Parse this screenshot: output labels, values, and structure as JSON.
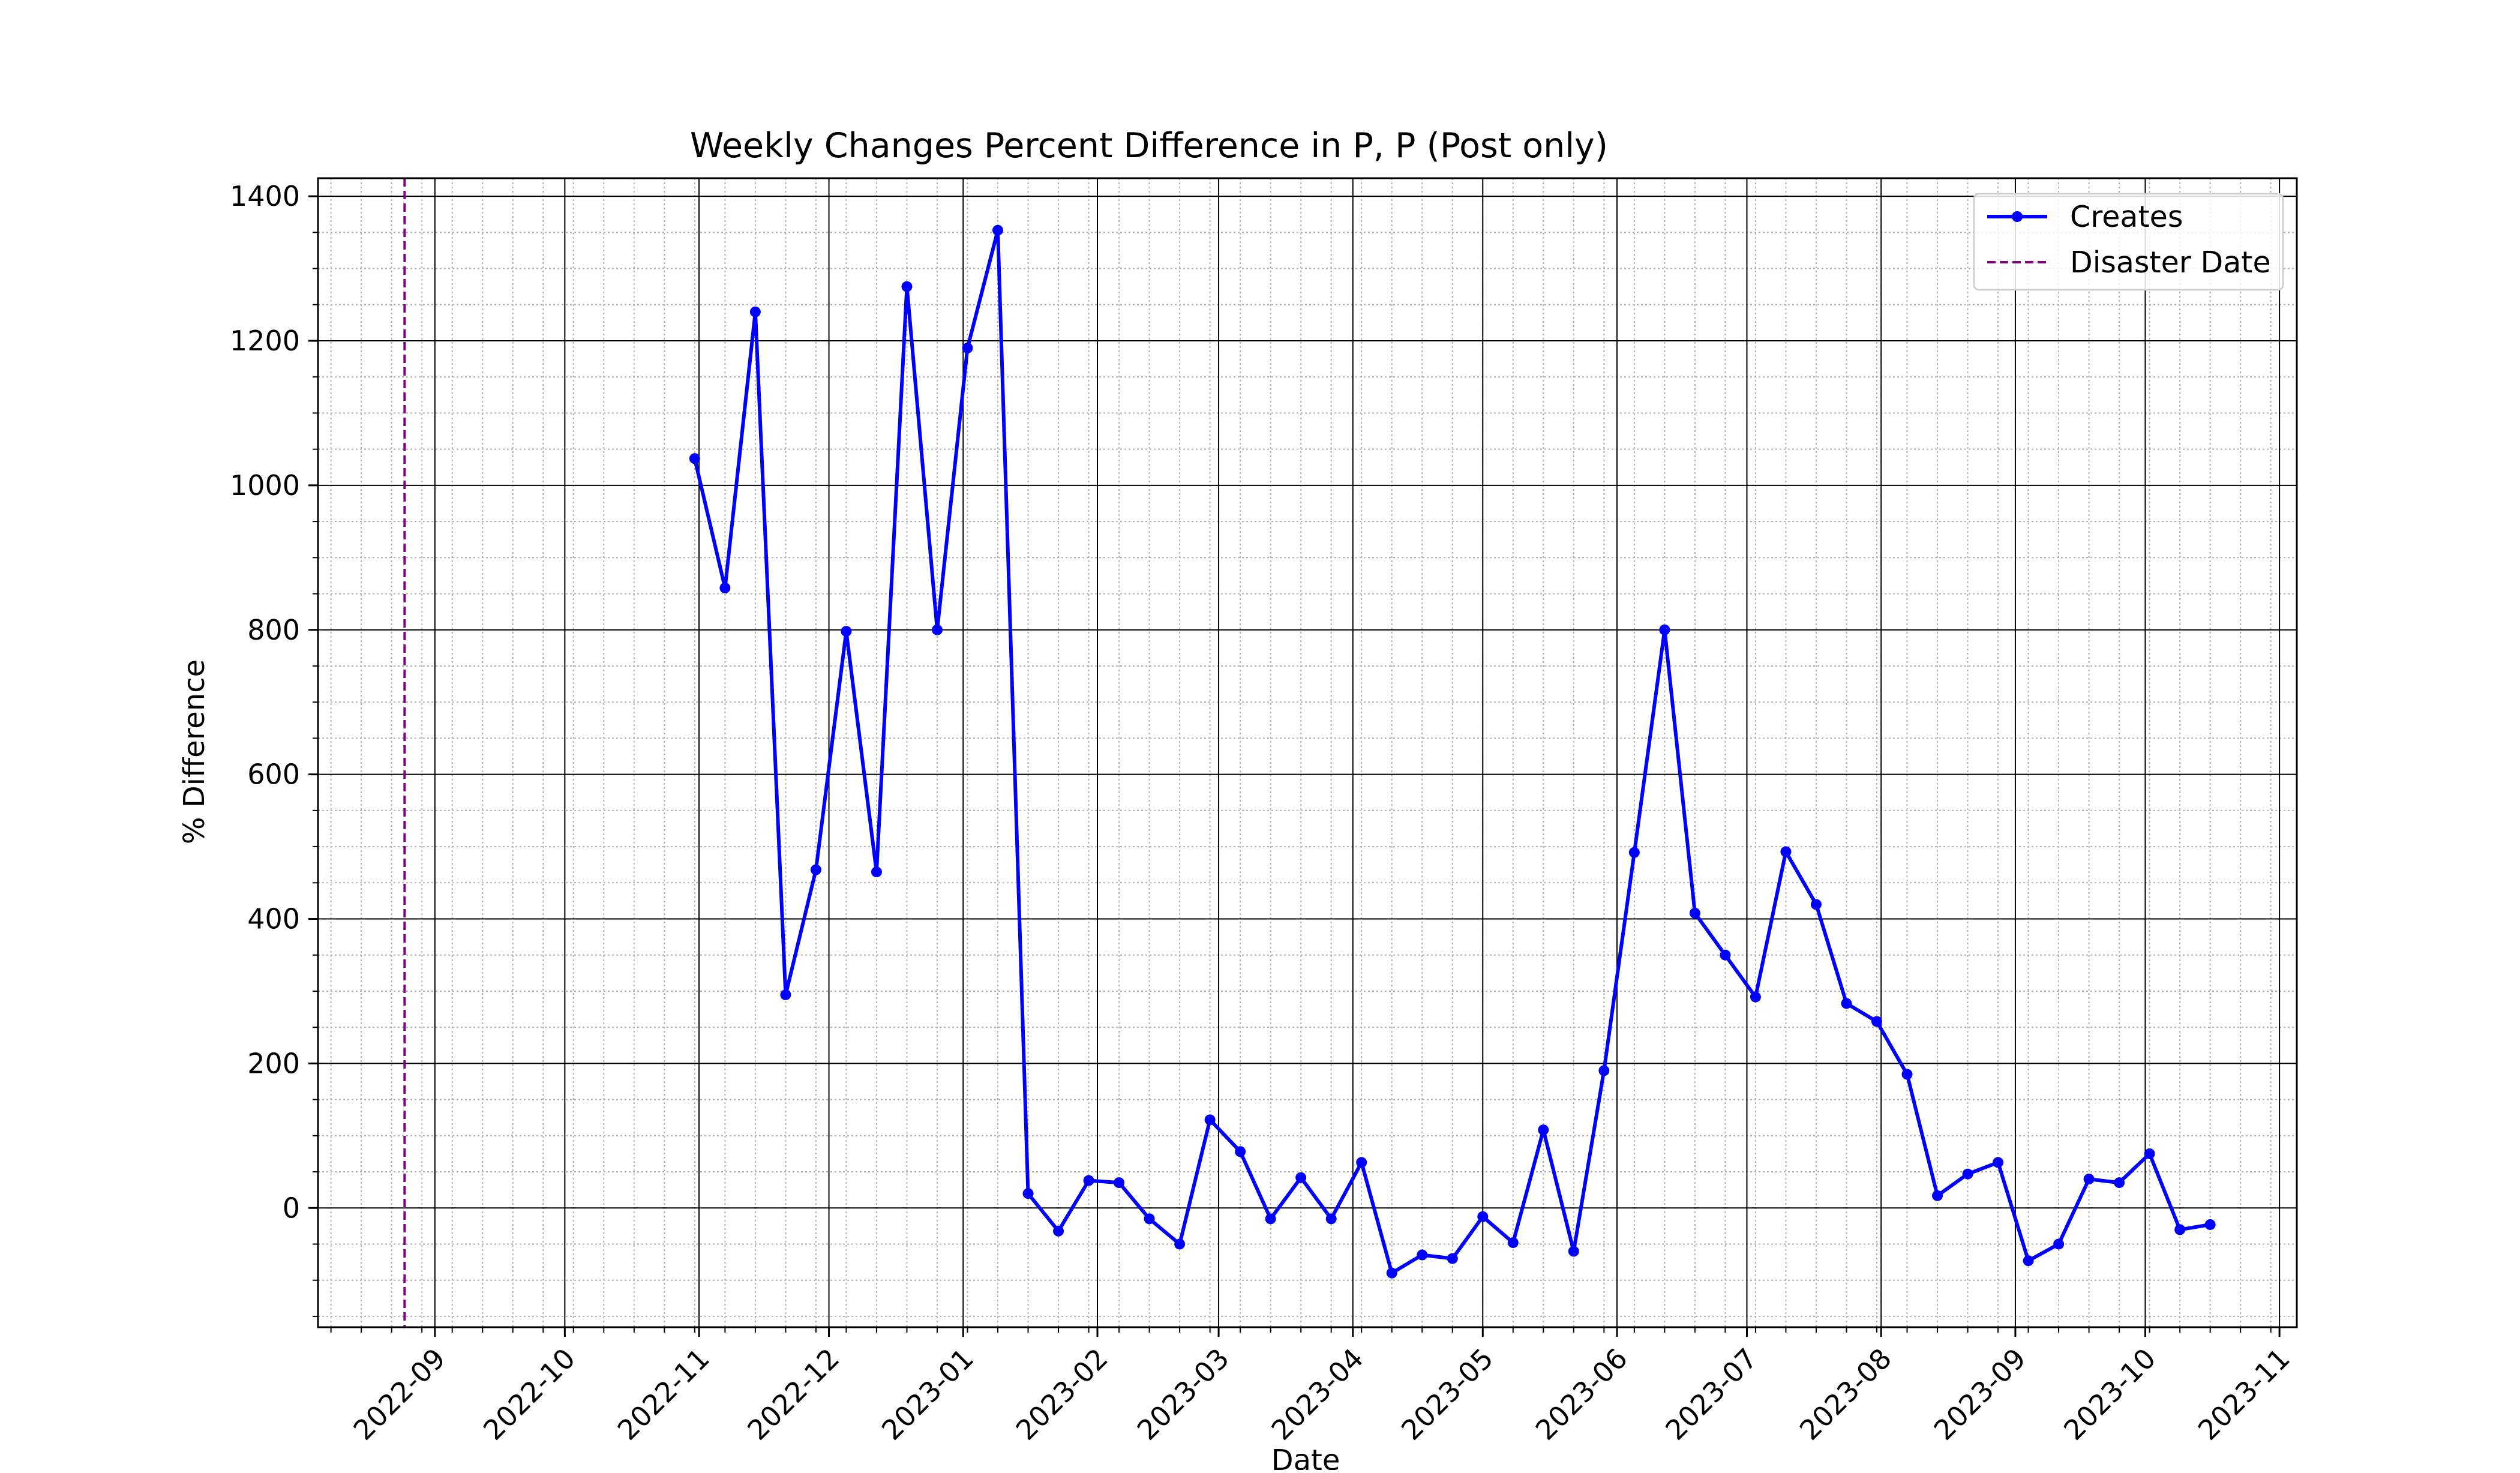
{
  "chart_data": {
    "type": "line",
    "title": "Weekly Changes Percent Difference in P, P (Post only)",
    "xlabel": "Date",
    "ylabel": "% Difference",
    "xlim": [
      "2022-08-05",
      "2023-11-05"
    ],
    "ylim": [
      -165,
      1425
    ],
    "y_ticks": [
      0,
      200,
      400,
      600,
      800,
      1000,
      1200,
      1400
    ],
    "x_ticks": [
      "2022-09",
      "2022-10",
      "2022-11",
      "2022-12",
      "2023-01",
      "2023-02",
      "2023-03",
      "2023-04",
      "2023-05",
      "2023-06",
      "2023-07",
      "2023-08",
      "2023-09",
      "2023-10",
      "2023-11"
    ],
    "grid": true,
    "legend_position": "top-right",
    "series": [
      {
        "name": "Creates",
        "color": "#0000ff",
        "marker": "circle",
        "points": [
          {
            "x": "2022-10-31",
            "y": 1037
          },
          {
            "x": "2022-11-07",
            "y": 858
          },
          {
            "x": "2022-11-14",
            "y": 1240
          },
          {
            "x": "2022-11-21",
            "y": 295
          },
          {
            "x": "2022-11-28",
            "y": 468
          },
          {
            "x": "2022-12-05",
            "y": 798
          },
          {
            "x": "2022-12-12",
            "y": 465
          },
          {
            "x": "2022-12-19",
            "y": 1275
          },
          {
            "x": "2022-12-26",
            "y": 800
          },
          {
            "x": "2023-01-02",
            "y": 1190
          },
          {
            "x": "2023-01-09",
            "y": 1353
          },
          {
            "x": "2023-01-16",
            "y": 20
          },
          {
            "x": "2023-01-23",
            "y": -32
          },
          {
            "x": "2023-01-30",
            "y": 38
          },
          {
            "x": "2023-02-06",
            "y": 35
          },
          {
            "x": "2023-02-13",
            "y": -15
          },
          {
            "x": "2023-02-20",
            "y": -50
          },
          {
            "x": "2023-02-27",
            "y": 122
          },
          {
            "x": "2023-03-06",
            "y": 78
          },
          {
            "x": "2023-03-13",
            "y": -15
          },
          {
            "x": "2023-03-20",
            "y": 42
          },
          {
            "x": "2023-03-27",
            "y": -15
          },
          {
            "x": "2023-04-03",
            "y": 63
          },
          {
            "x": "2023-04-10",
            "y": -90
          },
          {
            "x": "2023-04-17",
            "y": -65
          },
          {
            "x": "2023-04-24",
            "y": -70
          },
          {
            "x": "2023-05-01",
            "y": -12
          },
          {
            "x": "2023-05-08",
            "y": -48
          },
          {
            "x": "2023-05-15",
            "y": 108
          },
          {
            "x": "2023-05-22",
            "y": -60
          },
          {
            "x": "2023-05-29",
            "y": 190
          },
          {
            "x": "2023-06-05",
            "y": 492
          },
          {
            "x": "2023-06-12",
            "y": 800
          },
          {
            "x": "2023-06-19",
            "y": 408
          },
          {
            "x": "2023-06-26",
            "y": 350
          },
          {
            "x": "2023-07-03",
            "y": 292
          },
          {
            "x": "2023-07-10",
            "y": 493
          },
          {
            "x": "2023-07-17",
            "y": 420
          },
          {
            "x": "2023-07-24",
            "y": 283
          },
          {
            "x": "2023-07-31",
            "y": 258
          },
          {
            "x": "2023-08-07",
            "y": 185
          },
          {
            "x": "2023-08-14",
            "y": 17
          },
          {
            "x": "2023-08-21",
            "y": 47
          },
          {
            "x": "2023-08-28",
            "y": 63
          },
          {
            "x": "2023-09-04",
            "y": -73
          },
          {
            "x": "2023-09-11",
            "y": -50
          },
          {
            "x": "2023-09-18",
            "y": 40
          },
          {
            "x": "2023-09-25",
            "y": 35
          },
          {
            "x": "2023-10-02",
            "y": 75
          },
          {
            "x": "2023-10-09",
            "y": -30
          },
          {
            "x": "2023-10-16",
            "y": -23
          }
        ]
      }
    ],
    "reference_lines": [
      {
        "name": "Disaster Date",
        "x": "2022-08-25",
        "color": "#800080",
        "style": "dashed"
      }
    ],
    "colors": {
      "major_grid": "#000000",
      "minor_grid": "#b0b0b0",
      "axes": "#000000"
    }
  }
}
